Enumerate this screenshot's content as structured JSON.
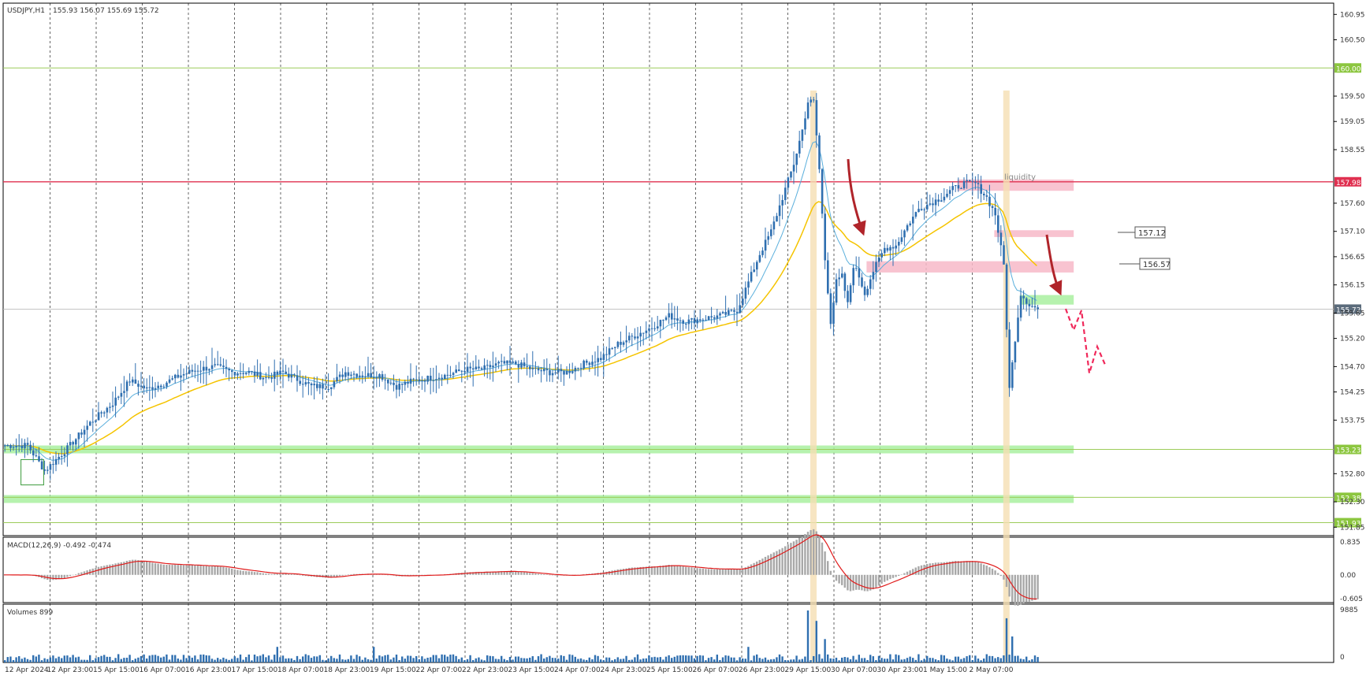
{
  "header": {
    "symbol": "USDJPY,H1",
    "ohlc": "155.93 156.07 155.69 155.72"
  },
  "colors": {
    "candle": "#2f6fb0",
    "ema_fast": "#5aafdc",
    "ema_slow": "#f5c400",
    "resistance": "#e03050",
    "support": "#9ccc5a",
    "zone_red": "#f7b8c8",
    "zone_green": "#a9f0a0",
    "volume": "#2f6fb0",
    "macd_hist": "#a8a8a8",
    "macd_signal": "#e01a1a",
    "arrow": "#b0242a",
    "projection": "#f0285a",
    "highlight": "#f5deb3"
  },
  "chart_data": [
    {
      "type": "candlestick",
      "title": "USDJPY,H1",
      "ylim": [
        151.7,
        161.15
      ],
      "price_scale": [
        "160.95",
        "160.50",
        "159.50",
        "159.05",
        "158.55",
        "157.60",
        "157.10",
        "156.65",
        "156.15",
        "155.65",
        "155.20",
        "154.70",
        "154.25",
        "153.75",
        "152.80",
        "152.30",
        "151.85"
      ],
      "time_labels": [
        "12 Apr 2024",
        "12 Apr 23:00",
        "15 Apr 15:00",
        "16 Apr 07:00",
        "16 Apr 23:00",
        "17 Apr 15:00",
        "18 Apr 07:00",
        "18 Apr 23:00",
        "19 Apr 15:00",
        "22 Apr 07:00",
        "22 Apr 23:00",
        "23 Apr 15:00",
        "24 Apr 07:00",
        "24 Apr 23:00",
        "25 Apr 15:00",
        "26 Apr 07:00",
        "26 Apr 23:00",
        "29 Apr 15:00",
        "30 Apr 07:00",
        "30 Apr 23:00",
        "1 May 15:00",
        "2 May 07:00"
      ],
      "price_path": [
        [
          0,
          153.3
        ],
        [
          8,
          153.3
        ],
        [
          14,
          152.85
        ],
        [
          18,
          153.05
        ],
        [
          22,
          153.25
        ],
        [
          30,
          153.7
        ],
        [
          38,
          154.05
        ],
        [
          44,
          154.45
        ],
        [
          50,
          154.3
        ],
        [
          56,
          154.4
        ],
        [
          62,
          154.55
        ],
        [
          68,
          154.65
        ],
        [
          74,
          154.7
        ],
        [
          80,
          154.6
        ],
        [
          86,
          154.6
        ],
        [
          92,
          154.5
        ],
        [
          98,
          154.6
        ],
        [
          104,
          154.45
        ],
        [
          108,
          154.35
        ],
        [
          114,
          154.35
        ],
        [
          120,
          154.6
        ],
        [
          126,
          154.55
        ],
        [
          132,
          154.55
        ],
        [
          138,
          154.35
        ],
        [
          144,
          154.45
        ],
        [
          150,
          154.5
        ],
        [
          156,
          154.55
        ],
        [
          162,
          154.65
        ],
        [
          168,
          154.65
        ],
        [
          174,
          154.75
        ],
        [
          180,
          154.75
        ],
        [
          186,
          154.65
        ],
        [
          192,
          154.6
        ],
        [
          198,
          154.6
        ],
        [
          204,
          154.75
        ],
        [
          210,
          154.85
        ],
        [
          216,
          155.1
        ],
        [
          222,
          155.25
        ],
        [
          228,
          155.4
        ],
        [
          234,
          155.6
        ],
        [
          240,
          155.5
        ],
        [
          246,
          155.55
        ],
        [
          252,
          155.6
        ],
        [
          258,
          155.7
        ],
        [
          262,
          156.2
        ],
        [
          266,
          156.7
        ],
        [
          270,
          157.1
        ],
        [
          274,
          157.7
        ],
        [
          278,
          158.3
        ],
        [
          281,
          158.9
        ],
        [
          283,
          159.4
        ],
        [
          285,
          159.4
        ],
        [
          287,
          158.2
        ],
        [
          289,
          156.6
        ],
        [
          291,
          155.5
        ],
        [
          293,
          156.2
        ],
        [
          295,
          156.3
        ],
        [
          297,
          155.8
        ],
        [
          299,
          156.5
        ],
        [
          301,
          156.3
        ],
        [
          303,
          156.0
        ],
        [
          306,
          156.4
        ],
        [
          310,
          156.8
        ],
        [
          314,
          156.85
        ],
        [
          318,
          157.2
        ],
        [
          322,
          157.5
        ],
        [
          326,
          157.6
        ],
        [
          330,
          157.7
        ],
        [
          334,
          157.85
        ],
        [
          338,
          157.95
        ],
        [
          342,
          157.95
        ],
        [
          346,
          157.7
        ],
        [
          349,
          157.4
        ],
        [
          352,
          156.5
        ],
        [
          354,
          154.3
        ],
        [
          356,
          155.2
        ],
        [
          358,
          156.0
        ],
        [
          361,
          155.8
        ],
        [
          364,
          155.72
        ]
      ],
      "volume_spikes": [
        [
          96,
          0.3
        ],
        [
          130,
          0.3
        ],
        [
          262,
          0.3
        ],
        [
          283,
          1.0
        ],
        [
          286,
          0.8
        ],
        [
          289,
          0.45
        ],
        [
          353,
          0.85
        ],
        [
          355,
          0.5
        ]
      ],
      "horizontal_levels": [
        {
          "price": 160.0,
          "label": "160.00",
          "kind": "support"
        },
        {
          "price": 157.98,
          "label": "157.98",
          "kind": "resistance"
        },
        {
          "price": 155.72,
          "label": "155.72",
          "kind": "current"
        },
        {
          "price": 153.23,
          "label": "153.23",
          "kind": "support"
        },
        {
          "price": 152.38,
          "label": "152.38",
          "kind": "support"
        },
        {
          "price": 151.93,
          "label": "151.93",
          "kind": "support"
        }
      ],
      "zones": [
        {
          "label": "liquidity",
          "from": 157.82,
          "to": 158.02,
          "color": "red",
          "x0": 336,
          "x1": 377
        },
        {
          "label": "157.12",
          "from": 157.0,
          "to": 157.12,
          "color": "red",
          "x0": 349,
          "x1": 377
        },
        {
          "label": "156.57",
          "from": 156.37,
          "to": 156.57,
          "color": "red",
          "x0": 304,
          "x1": 377
        },
        {
          "label": "",
          "from": 155.8,
          "to": 155.97,
          "color": "green",
          "x0": 358,
          "x1": 377
        },
        {
          "label": "",
          "from": 153.16,
          "to": 153.3,
          "color": "green",
          "x0": 0,
          "x1": 377
        },
        {
          "label": "",
          "from": 152.28,
          "to": 152.42,
          "color": "green",
          "x0": 0,
          "x1": 377
        }
      ],
      "annotations": {
        "liquidity_text": "liquidity",
        "callout_157": "157.12",
        "callout_156": "156.57"
      }
    },
    {
      "type": "bar",
      "title": "MACD(12,26,9) -0.492 -0.474",
      "ylim": [
        -0.7,
        0.95
      ],
      "scale": [
        "0.835",
        "0.00",
        "-0.605"
      ]
    },
    {
      "type": "bar",
      "title": "Volumes 899",
      "ylim": [
        0,
        9885
      ],
      "scale": [
        "9885",
        "0"
      ]
    }
  ]
}
